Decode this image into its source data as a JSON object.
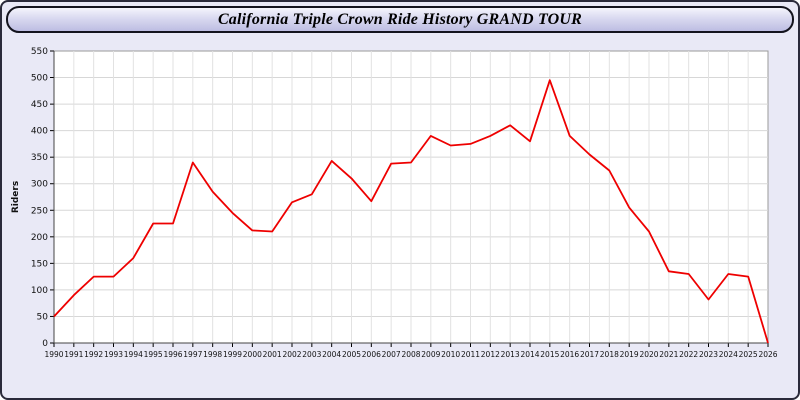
{
  "header": {
    "title": "California Triple Crown Ride History GRAND TOUR"
  },
  "chart_data": {
    "type": "line",
    "title": "California Triple Crown Ride History GRAND TOUR",
    "xlabel": "",
    "ylabel": "Riders",
    "x": [
      1990,
      1991,
      1992,
      1993,
      1994,
      1995,
      1996,
      1997,
      1998,
      1999,
      2000,
      2001,
      2002,
      2003,
      2004,
      2005,
      2006,
      2007,
      2008,
      2009,
      2010,
      2011,
      2012,
      2013,
      2014,
      2015,
      2016,
      2017,
      2018,
      2019,
      2020,
      2021,
      2022,
      2023,
      2024,
      2025,
      2026
    ],
    "series": [
      {
        "name": "Riders",
        "values": [
          50,
          90,
          125,
          125,
          160,
          225,
          225,
          340,
          285,
          245,
          212,
          210,
          265,
          280,
          343,
          310,
          267,
          338,
          340,
          390,
          372,
          375,
          390,
          410,
          380,
          495,
          390,
          355,
          325,
          255,
          210,
          135,
          130,
          82,
          130,
          125,
          0
        ]
      }
    ],
    "ylim": [
      0,
      550
    ],
    "ytick_step": 50,
    "grid": "on",
    "legend": "none",
    "line_color": "#ee0000",
    "plot_background": "#ffffff",
    "page_background": "#e9e9f6"
  }
}
